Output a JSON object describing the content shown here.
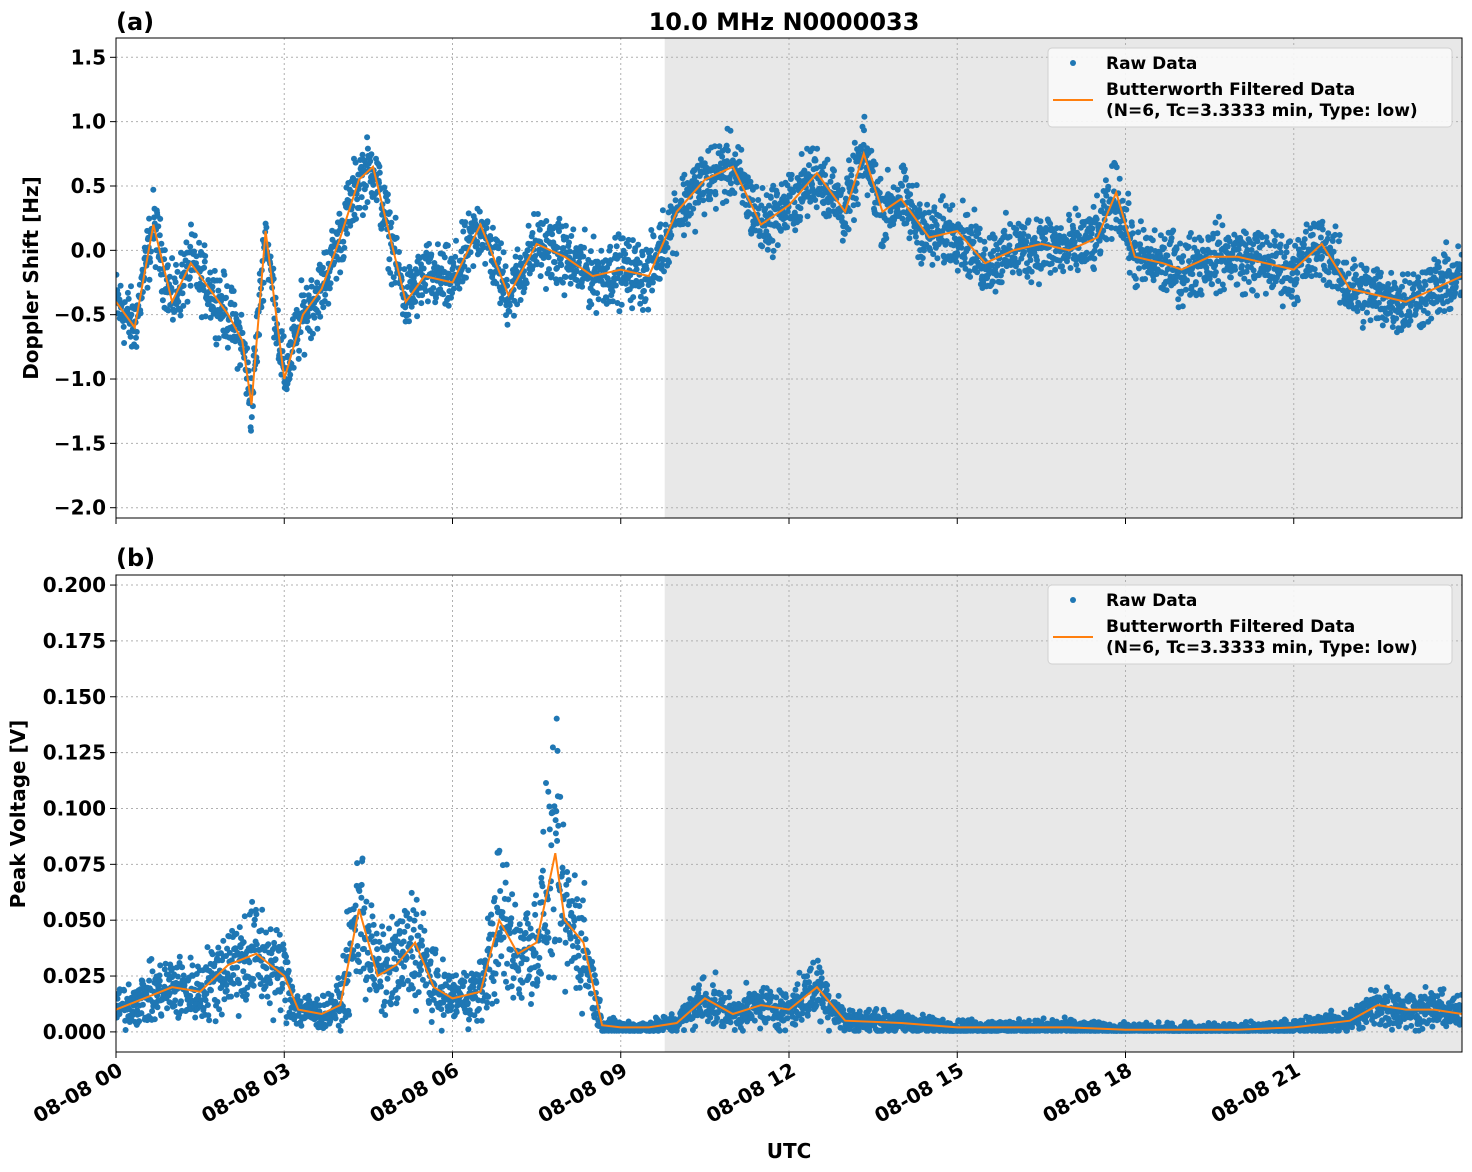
{
  "chart_data": [
    {
      "type": "scatter",
      "panel_label": "(a)",
      "title": "10.0 MHz N0000033",
      "xlabel": "",
      "ylabel": "Doppler Shift [Hz]",
      "ylim": [
        -2.08,
        1.65
      ],
      "xlim": [
        "08-08 00:00",
        "08-09 00:00"
      ],
      "yticks": [
        "−2.0",
        "−1.5",
        "−1.0",
        "−0.5",
        "0.0",
        "0.5",
        "1.0",
        "1.5"
      ],
      "ytick_values": [
        -2.0,
        -1.5,
        -1.0,
        -0.5,
        0.0,
        0.5,
        1.0,
        1.5
      ],
      "grid": true,
      "legend_placement": "upper-right",
      "shaded_region": {
        "start": "08-08 09:47",
        "end": "08-09 00:00",
        "color": "#e8e8e8"
      },
      "raw_spread": 0.3,
      "series": [
        {
          "name": "Raw Data",
          "kind": "points",
          "color": "#1f77b4"
        },
        {
          "name": "Butterworth Filtered Data",
          "name_line2": "(N=6, Tc=3.3333 min, Type: low)",
          "kind": "line",
          "color": "#ff7f0e",
          "x": [
            "00:00",
            "00:20",
            "00:40",
            "01:00",
            "01:20",
            "01:40",
            "02:00",
            "02:15",
            "02:25",
            "02:40",
            "03:00",
            "03:20",
            "03:40",
            "04:00",
            "04:20",
            "04:35",
            "04:50",
            "05:10",
            "05:30",
            "06:00",
            "06:30",
            "07:00",
            "07:30",
            "08:00",
            "08:30",
            "09:00",
            "09:30",
            "10:00",
            "10:30",
            "11:00",
            "11:30",
            "12:00",
            "12:30",
            "13:00",
            "13:20",
            "13:40",
            "14:00",
            "14:30",
            "15:00",
            "15:30",
            "16:00",
            "16:30",
            "17:00",
            "17:30",
            "17:50",
            "18:10",
            "18:40",
            "19:00",
            "19:30",
            "20:00",
            "20:30",
            "21:00",
            "21:30",
            "22:00",
            "22:30",
            "23:00",
            "23:30",
            "24:00"
          ],
          "y": [
            -0.4,
            -0.6,
            0.2,
            -0.4,
            -0.1,
            -0.3,
            -0.5,
            -0.7,
            -1.2,
            0.15,
            -1.0,
            -0.5,
            -0.3,
            0.1,
            0.55,
            0.65,
            0.2,
            -0.4,
            -0.2,
            -0.25,
            0.2,
            -0.35,
            0.05,
            -0.05,
            -0.2,
            -0.15,
            -0.2,
            0.3,
            0.55,
            0.65,
            0.2,
            0.35,
            0.6,
            0.3,
            0.75,
            0.3,
            0.4,
            0.1,
            0.15,
            -0.1,
            0.0,
            0.05,
            0.0,
            0.1,
            0.45,
            -0.05,
            -0.1,
            -0.15,
            -0.05,
            -0.05,
            -0.1,
            -0.15,
            0.05,
            -0.3,
            -0.35,
            -0.4,
            -0.3,
            -0.2
          ]
        }
      ]
    },
    {
      "type": "scatter",
      "panel_label": "(b)",
      "title": "",
      "xlabel": "UTC",
      "ylabel": "Peak Voltage [V]",
      "ylim": [
        -0.009,
        0.2045
      ],
      "xlim": [
        "08-08 00:00",
        "08-09 00:00"
      ],
      "yticks": [
        "0.000",
        "0.025",
        "0.050",
        "0.075",
        "0.100",
        "0.125",
        "0.150",
        "0.175",
        "0.200"
      ],
      "ytick_values": [
        0,
        0.025,
        0.05,
        0.075,
        0.1,
        0.125,
        0.15,
        0.175,
        0.2
      ],
      "xticks": [
        "08-08 00",
        "08-08 03",
        "08-08 06",
        "08-08 09",
        "08-08 12",
        "08-08 15",
        "08-08 18",
        "08-08 21"
      ],
      "xtick_hours": [
        0,
        3,
        6,
        9,
        12,
        15,
        18,
        21
      ],
      "grid": true,
      "legend_placement": "upper-right",
      "shaded_region": {
        "start": "08-08 09:47",
        "end": "08-09 00:00",
        "color": "#e8e8e8"
      },
      "series": [
        {
          "name": "Raw Data",
          "kind": "points",
          "color": "#1f77b4"
        },
        {
          "name": "Butterworth Filtered Data",
          "name_line2": "(N=6, Tc=3.3333 min, Type: low)",
          "kind": "line",
          "color": "#ff7f0e",
          "x": [
            "00:00",
            "00:30",
            "01:00",
            "01:30",
            "02:00",
            "02:30",
            "03:00",
            "03:15",
            "03:40",
            "04:00",
            "04:20",
            "04:40",
            "05:00",
            "05:20",
            "05:40",
            "06:00",
            "06:30",
            "06:50",
            "07:10",
            "07:30",
            "07:50",
            "08:00",
            "08:20",
            "08:40",
            "09:00",
            "09:30",
            "10:00",
            "10:30",
            "11:00",
            "11:30",
            "12:00",
            "12:30",
            "13:00",
            "14:00",
            "15:00",
            "16:00",
            "17:00",
            "18:00",
            "19:00",
            "20:00",
            "21:00",
            "22:00",
            "22:30",
            "23:00",
            "23:30",
            "24:00"
          ],
          "y": [
            0.01,
            0.015,
            0.02,
            0.018,
            0.03,
            0.035,
            0.025,
            0.01,
            0.008,
            0.012,
            0.055,
            0.025,
            0.03,
            0.04,
            0.02,
            0.015,
            0.018,
            0.05,
            0.035,
            0.04,
            0.08,
            0.05,
            0.04,
            0.003,
            0.002,
            0.002,
            0.004,
            0.015,
            0.008,
            0.012,
            0.01,
            0.02,
            0.005,
            0.004,
            0.002,
            0.002,
            0.002,
            0.001,
            0.001,
            0.001,
            0.002,
            0.005,
            0.012,
            0.01,
            0.01,
            0.008
          ]
        }
      ]
    }
  ]
}
